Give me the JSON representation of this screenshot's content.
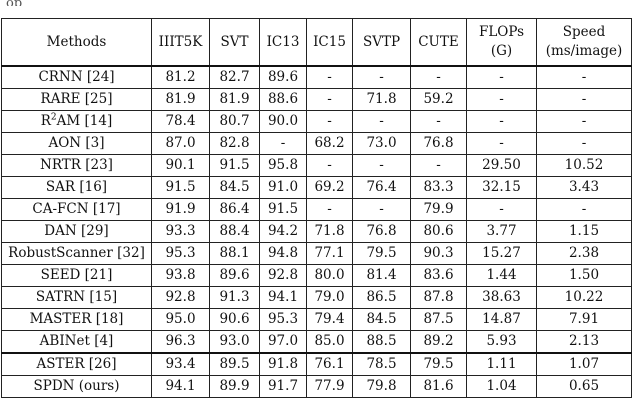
{
  "caption_tail": "op",
  "table": {
    "headers": [
      "Methods",
      "IIIT5K",
      "SVT",
      "IC13",
      "IC15",
      "SVTP",
      "CUTE",
      "FLOPs\n(G)",
      "Speed\n(ms/image)"
    ],
    "header_lines": [
      [
        "Methods"
      ],
      [
        "IIIT5K"
      ],
      [
        "SVT"
      ],
      [
        "IC13"
      ],
      [
        "IC15"
      ],
      [
        "SVTP"
      ],
      [
        "CUTE"
      ],
      [
        "FLOPs",
        "(G)"
      ],
      [
        "Speed",
        "(ms/image)"
      ]
    ],
    "main_rows": [
      {
        "method": "CRNN [24]",
        "cells": [
          "81.2",
          "82.7",
          "89.6",
          "-",
          "-",
          "-",
          "-",
          "-"
        ]
      },
      {
        "method": "RARE [25]",
        "cells": [
          "81.9",
          "81.9",
          "88.6",
          "-",
          "71.8",
          "59.2",
          "-",
          "-"
        ]
      },
      {
        "method_pre": "R",
        "method_sup": "2",
        "method_post": "AM [14]",
        "cells": [
          "78.4",
          "80.7",
          "90.0",
          "-",
          "-",
          "-",
          "-",
          "-"
        ]
      },
      {
        "method": "AON [3]",
        "cells": [
          "87.0",
          "82.8",
          "-",
          "68.2",
          "73.0",
          "76.8",
          "-",
          "-"
        ]
      },
      {
        "method": "NRTR [23]",
        "cells": [
          "90.1",
          "91.5",
          "95.8",
          "-",
          "-",
          "-",
          "29.50",
          "10.52"
        ]
      },
      {
        "method": "SAR [16]",
        "cells": [
          "91.5",
          "84.5",
          "91.0",
          "69.2",
          "76.4",
          "83.3",
          "32.15",
          "3.43"
        ]
      },
      {
        "method": "CA-FCN [17]",
        "cells": [
          "91.9",
          "86.4",
          "91.5",
          "-",
          "-",
          "79.9",
          "-",
          "-"
        ]
      },
      {
        "method": "DAN [29]",
        "cells": [
          "93.3",
          "88.4",
          "94.2",
          "71.8",
          "76.8",
          "80.6",
          "3.77",
          "1.15"
        ]
      },
      {
        "method": "RobustScanner [32]",
        "cells": [
          "95.3",
          "88.1",
          "94.8",
          "77.1",
          "79.5",
          "90.3",
          "15.27",
          "2.38"
        ],
        "bold": [
          5
        ]
      },
      {
        "method": "SEED [21]",
        "cells": [
          "93.8",
          "89.6",
          "92.8",
          "80.0",
          "81.4",
          "83.6",
          "1.44",
          "1.50"
        ]
      },
      {
        "method": "SATRN [15]",
        "cells": [
          "92.8",
          "91.3",
          "94.1",
          "79.0",
          "86.5",
          "87.8",
          "38.63",
          "10.22"
        ]
      },
      {
        "method": "MASTER [18]",
        "cells": [
          "95.0",
          "90.6",
          "95.3",
          "79.4",
          "84.5",
          "87.5",
          "14.87",
          "7.91"
        ]
      },
      {
        "method": "ABINet [4]",
        "cells": [
          "96.3",
          "93.0",
          "97.0",
          "85.0",
          "88.5",
          "89.2",
          "5.93",
          "2.13"
        ],
        "bold": [
          0,
          1,
          2,
          3,
          4
        ]
      }
    ],
    "ext_rows": [
      {
        "method": "ASTER [26]",
        "cells": [
          "93.4",
          "89.5",
          "91.8",
          "76.1",
          "78.5",
          "79.5",
          "1.11",
          "1.07"
        ]
      },
      {
        "method": "SPDN (ours)",
        "cells": [
          "94.1",
          "89.9",
          "91.7",
          "77.9",
          "79.8",
          "81.6",
          "1.04",
          "0.65"
        ],
        "bold": [
          6,
          7
        ]
      }
    ]
  }
}
